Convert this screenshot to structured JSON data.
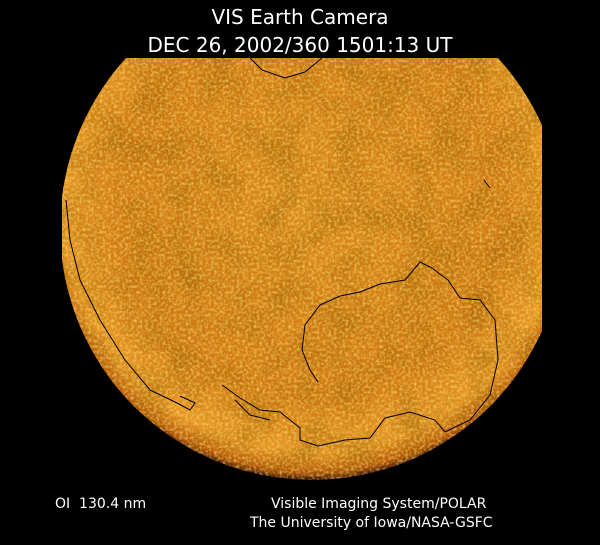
{
  "header": {
    "title": "VIS Earth Camera",
    "timestamp": "DEC 26, 2002/360 1501:13 UT"
  },
  "footer": {
    "filter": "OI  130.4 nm",
    "instrument": "Visible Imaging System/POLAR",
    "institution": "The University of Iowa/NASA-GSFC"
  }
}
